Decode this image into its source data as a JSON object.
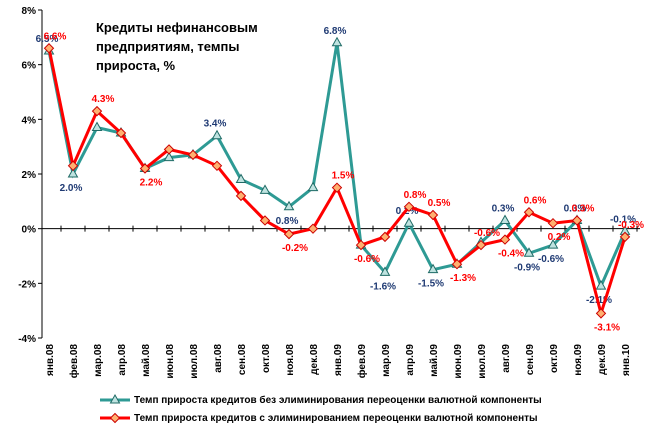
{
  "chart_data": {
    "type": "line",
    "title": "Кредиты нефинансовым предприятиям, темпы прироста, %",
    "categories": [
      "янв.08",
      "фев.08",
      "мар.08",
      "апр.08",
      "май.08",
      "июн.08",
      "июл.08",
      "авг.08",
      "сен.08",
      "окт.08",
      "ноя.08",
      "дек.08",
      "янв.09",
      "фев.09",
      "мар.09",
      "апр.09",
      "май.09",
      "июн.09",
      "июл.09",
      "авг.09",
      "сен.09",
      "окт.09",
      "ноя.09",
      "дек.09",
      "янв.10"
    ],
    "ylim": [
      -4,
      8
    ],
    "yticks": [
      {
        "value": -4,
        "label": "-4%"
      },
      {
        "value": -2,
        "label": "-2%"
      },
      {
        "value": 0,
        "label": "0%"
      },
      {
        "value": 2,
        "label": "2%"
      },
      {
        "value": 4,
        "label": "4%"
      },
      {
        "value": 6,
        "label": "6%"
      },
      {
        "value": 8,
        "label": "8%"
      }
    ],
    "legend": "bottom",
    "series": [
      {
        "name": "Темп прироста кредитов без элиминирования переоценки валютной компоненты",
        "color": "#2e9a94",
        "values": [
          6.5,
          2.0,
          3.7,
          3.5,
          2.2,
          2.6,
          2.7,
          3.4,
          1.8,
          1.4,
          0.8,
          1.5,
          6.8,
          -0.6,
          -1.6,
          0.2,
          -1.5,
          -1.3,
          -0.5,
          0.3,
          -0.9,
          -0.6,
          0.3,
          -2.1,
          -0.1
        ],
        "value_labels": [
          "6.5%",
          "2.0%",
          null,
          null,
          null,
          null,
          null,
          "3.4%",
          null,
          null,
          "0.8%",
          null,
          "6.8%",
          null,
          "-1.6%",
          "0.2%",
          "-1.5%",
          null,
          null,
          "0.3%",
          "-0.9%",
          "-0.6%",
          "0.3%",
          "-2.1%",
          "-0.1%"
        ]
      },
      {
        "name": "Темп прироста кредитов с элиминированием переоценки валютной компоненты",
        "color": "#ff0000",
        "values": [
          6.6,
          2.3,
          4.3,
          3.5,
          2.2,
          2.9,
          2.7,
          2.3,
          1.2,
          0.3,
          -0.2,
          0.0,
          1.5,
          -0.6,
          -0.3,
          0.8,
          0.5,
          -1.3,
          -0.6,
          -0.4,
          0.6,
          0.2,
          0.3,
          -3.1,
          -0.3
        ],
        "value_labels": [
          "6.6%",
          null,
          "4.3%",
          null,
          "2.2%",
          null,
          null,
          null,
          null,
          null,
          "-0.2%",
          null,
          "1.5%",
          "-0.6%",
          null,
          "0.8%",
          "0.5%",
          "-1.3%",
          "-0.6%",
          "-0.4%",
          "0.6%",
          "0.2%",
          "0.3%",
          "-3.1%",
          "-0.3%"
        ]
      }
    ]
  }
}
